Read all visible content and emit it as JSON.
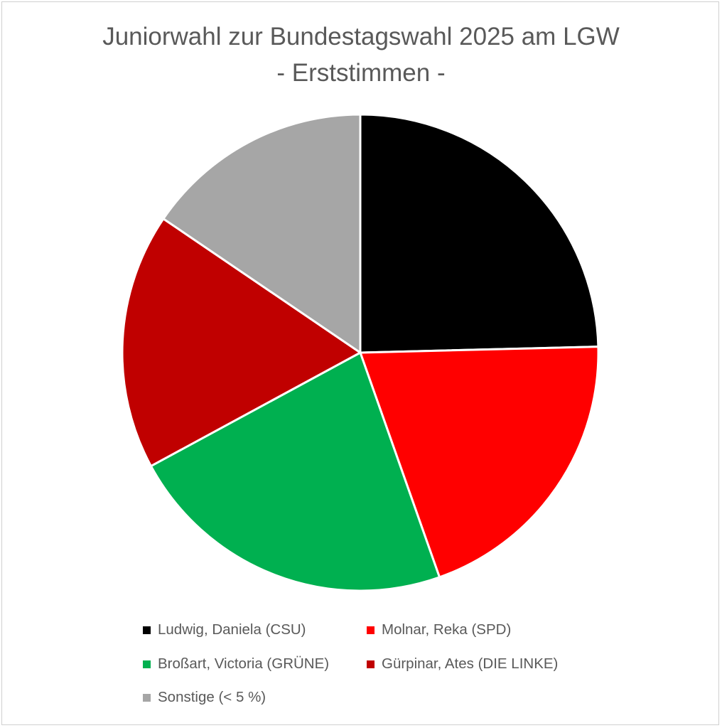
{
  "chart_data": {
    "type": "pie",
    "title": "Juniorwahl zur Bundestagswahl 2025 am LGW",
    "subtitle": "- Erststimmen -",
    "start": "12 o'clock",
    "direction": "clockwise",
    "slices": [
      {
        "label": "Ludwig, Daniela (CSU)",
        "value": 24.6,
        "color": "#000000"
      },
      {
        "label": "Molnar, Reka (SPD)",
        "value": 20.0,
        "color": "#ff0000"
      },
      {
        "label": "Broßart, Victoria (GRÜNE)",
        "value": 22.5,
        "color": "#00b050"
      },
      {
        "label": "Gürpinar, Ates (DIE LINKE)",
        "value": 17.4,
        "color": "#c00000"
      },
      {
        "label": "Sonstige (< 5 %)",
        "value": 15.5,
        "color": "#a6a6a6"
      }
    ],
    "legend": {
      "placement": "bottom",
      "items": [
        "Ludwig, Daniela (CSU)",
        "Molnar, Reka (SPD)",
        "Broßart, Victoria (GRÜNE)",
        "Gürpinar, Ates (DIE LINKE)",
        "Sonstige (< 5 %)"
      ]
    }
  }
}
